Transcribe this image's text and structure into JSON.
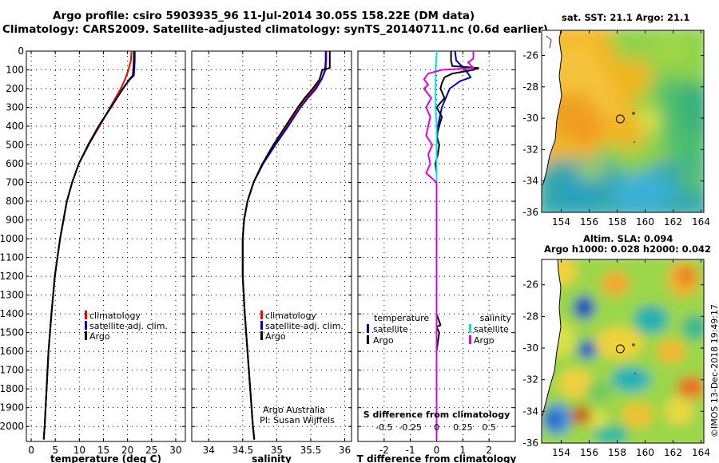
{
  "header": {
    "title_line1": "Argo profile: csiro 5903935_96 11-Jul-2014 30.05S 158.22E (DM data)",
    "title_line2": "Climatology: CARS2009. Satellite-adjusted climatology: synTS_20140711.nc (0.6d earlier)"
  },
  "colors": {
    "climatology": "#ff0000",
    "satellite": "#0000cc",
    "argo": "#000000",
    "satellite_salinity": "#00e5e5",
    "argo_salinity": "#e600e6"
  },
  "chart_data": [
    {
      "type": "line",
      "name": "temperature-profile",
      "xlabel": "temperature (deg C)",
      "ylabel": "",
      "xlim": [
        -1,
        32
      ],
      "ylim": [
        2080,
        0
      ],
      "xticks": [
        "0",
        "5",
        "10",
        "15",
        "20",
        "25",
        "30"
      ],
      "yticks": [
        "0",
        "100",
        "200",
        "300",
        "400",
        "500",
        "600",
        "700",
        "800",
        "900",
        "1000",
        "1100",
        "1200",
        "1300",
        "1400",
        "1500",
        "1600",
        "1700",
        "1800",
        "1900",
        "2000"
      ],
      "grid": true,
      "legend": [
        "climatology",
        "satellite-adj. clim.",
        "Argo"
      ],
      "series": [
        {
          "name": "climatology",
          "depth": [
            0,
            50,
            100,
            150,
            200,
            300,
            400,
            500,
            600,
            700,
            800,
            1000,
            1200,
            1400,
            1600,
            1800,
            2000,
            2070
          ],
          "values": [
            20.8,
            20.7,
            20.2,
            19.5,
            18.6,
            16.4,
            14.2,
            11.9,
            9.9,
            8.5,
            7.4,
            6.0,
            4.9,
            4.2,
            3.6,
            3.2,
            2.8,
            2.6
          ]
        },
        {
          "name": "satellite-adj. clim.",
          "depth": [
            0,
            50,
            100,
            130,
            150,
            200,
            300,
            400,
            500,
            600,
            700,
            800,
            1000,
            1200,
            1400,
            1600,
            1800,
            2000,
            2070
          ],
          "values": [
            21.5,
            21.5,
            21.4,
            21.3,
            20.5,
            19.0,
            16.6,
            14.0,
            11.8,
            9.9,
            8.5,
            7.4,
            6.0,
            4.9,
            4.2,
            3.6,
            3.2,
            2.8,
            2.6
          ]
        },
        {
          "name": "Argo",
          "depth": [
            0,
            50,
            100,
            130,
            150,
            200,
            300,
            400,
            500,
            600,
            700,
            800,
            1000,
            1200,
            1400,
            1600,
            1800,
            2000,
            2070
          ],
          "values": [
            21.3,
            21.3,
            21.2,
            21.1,
            20.4,
            19.1,
            16.5,
            14.0,
            11.9,
            9.9,
            8.5,
            7.4,
            6.0,
            4.9,
            4.2,
            3.6,
            3.2,
            2.8,
            2.6
          ]
        }
      ]
    },
    {
      "type": "line",
      "name": "salinity-profile",
      "xlabel": "salinity",
      "xlim": [
        33.75,
        36.1
      ],
      "ylim": [
        2080,
        0
      ],
      "xticks": [
        "34",
        "34.5",
        "35",
        "35.5",
        "36"
      ],
      "grid": true,
      "legend": [
        "climatology",
        "satellite-adj. clim.",
        "Argo"
      ],
      "series": [
        {
          "name": "climatology",
          "depth": [
            0,
            50,
            100,
            150,
            200,
            250,
            300,
            400,
            500,
            600,
            700,
            800,
            900,
            1000,
            1200,
            1400,
            1600,
            1800,
            2000,
            2070
          ],
          "values": [
            35.73,
            35.73,
            35.72,
            35.66,
            35.55,
            35.43,
            35.32,
            35.15,
            34.97,
            34.79,
            34.66,
            34.57,
            34.52,
            34.5,
            34.5,
            34.53,
            34.57,
            34.61,
            34.65,
            34.67
          ]
        },
        {
          "name": "satellite-adj. clim.",
          "depth": [
            0,
            50,
            100,
            150,
            200,
            250,
            300,
            400,
            500,
            600,
            700,
            800,
            900,
            1000,
            1200,
            1400,
            1600,
            1800,
            2000,
            2070
          ],
          "values": [
            35.72,
            35.72,
            35.71,
            35.66,
            35.58,
            35.46,
            35.35,
            35.17,
            34.98,
            34.8,
            34.66,
            34.57,
            34.52,
            34.5,
            34.5,
            34.53,
            34.57,
            34.61,
            34.65,
            34.67
          ]
        },
        {
          "name": "Argo",
          "depth": [
            0,
            20,
            50,
            90,
            100,
            150,
            200,
            250,
            300,
            400,
            500,
            600,
            700,
            800,
            900,
            1000,
            1200,
            1400,
            1600,
            1800,
            2000,
            2070
          ],
          "values": [
            35.78,
            35.78,
            35.78,
            35.78,
            35.67,
            35.63,
            35.53,
            35.41,
            35.31,
            35.13,
            34.95,
            34.79,
            34.66,
            34.57,
            34.52,
            34.5,
            34.5,
            34.53,
            34.57,
            34.61,
            34.65,
            34.67
          ]
        }
      ],
      "annotations": [
        "Argo Australia",
        "PI: Susan Wijffels"
      ]
    },
    {
      "type": "line",
      "name": "difference-profile",
      "xlabel": "T difference from climatology",
      "xlabel_top": "S difference from climatology",
      "xlim": [
        -3,
        3
      ],
      "ylim": [
        2080,
        0
      ],
      "xticks": [
        "-2",
        "-1",
        "0",
        "1",
        "2"
      ],
      "xticks_salinity": [
        "-0.5",
        "-0.25",
        "0",
        "0.25",
        "0.5"
      ],
      "grid": true,
      "legend_left_title": "temperature",
      "legend_right_title": "salinity",
      "legend": [
        "satellite",
        "Argo",
        "satellite",
        "Argo"
      ],
      "series": [
        {
          "name": "T satellite",
          "depth": [
            0,
            50,
            100,
            140,
            160,
            200,
            300,
            400,
            500,
            600,
            700,
            800,
            1000,
            1500,
            2070
          ],
          "values": [
            0.7,
            0.75,
            1.1,
            1.3,
            0.9,
            0.5,
            0.2,
            0.05,
            0.0,
            0.0,
            0.0,
            0.0,
            0.0,
            0.0,
            0.0
          ]
        },
        {
          "name": "T Argo",
          "depth": [
            0,
            50,
            80,
            90,
            100,
            110,
            120,
            140,
            170,
            200,
            250,
            300,
            350,
            400,
            450,
            500,
            550,
            600,
            650,
            700,
            1000,
            1400,
            1460,
            1470,
            1500,
            1600,
            2070
          ],
          "values": [
            0.55,
            0.55,
            0.6,
            1.6,
            1.4,
            1.0,
            0.6,
            0.3,
            0.2,
            0.15,
            0.3,
            0.0,
            0.2,
            0.1,
            0.0,
            0.1,
            0.05,
            -0.05,
            0.0,
            0.0,
            0.0,
            0.0,
            0.15,
            0.0,
            0.1,
            0.0,
            0.0
          ]
        },
        {
          "name": "S satellite",
          "depth": [
            0,
            20,
            100,
            200,
            300,
            400,
            500,
            700,
            1000,
            1500,
            2070
          ],
          "values": [
            0.0,
            0.0,
            -0.01,
            -0.01,
            -0.01,
            0.0,
            0.0,
            0.0,
            0.0,
            0.0,
            0.0
          ]
        },
        {
          "name": "S Argo",
          "depth": [
            0,
            20,
            40,
            60,
            90,
            100,
            120,
            150,
            180,
            200,
            250,
            300,
            350,
            400,
            450,
            500,
            550,
            600,
            650,
            700,
            900,
            1500,
            2070
          ],
          "values": [
            0.35,
            0.35,
            0.35,
            0.3,
            0.35,
            0.05,
            -0.08,
            -0.12,
            -0.08,
            -0.12,
            -0.05,
            -0.1,
            -0.06,
            -0.08,
            -0.1,
            -0.04,
            -0.08,
            -0.06,
            -0.1,
            0.0,
            0.0,
            0.0,
            0.0
          ]
        }
      ]
    }
  ],
  "maps": {
    "sst": {
      "title": "sat. SST: 21.1 Argo: 21.1",
      "xticks": [
        "154",
        "156",
        "158",
        "160",
        "162",
        "164"
      ],
      "yticks": [
        "-26",
        "-28",
        "-30",
        "-32",
        "-34",
        "-36"
      ],
      "float_lon": 158.22,
      "float_lat": -30.05
    },
    "sla": {
      "title_line1": "Altim. SLA: 0.094",
      "title_line2": "Argo h1000: 0.028 h2000: 0.042",
      "xticks": [
        "154",
        "156",
        "158",
        "160",
        "162",
        "164"
      ],
      "yticks": [
        "-26",
        "-28",
        "-30",
        "-32",
        "-34",
        "-36"
      ],
      "float_lon": 158.22,
      "float_lat": -30.05
    }
  },
  "footer": {
    "stamp": "©IMOS 13-Dec-2018 19:49:17"
  }
}
